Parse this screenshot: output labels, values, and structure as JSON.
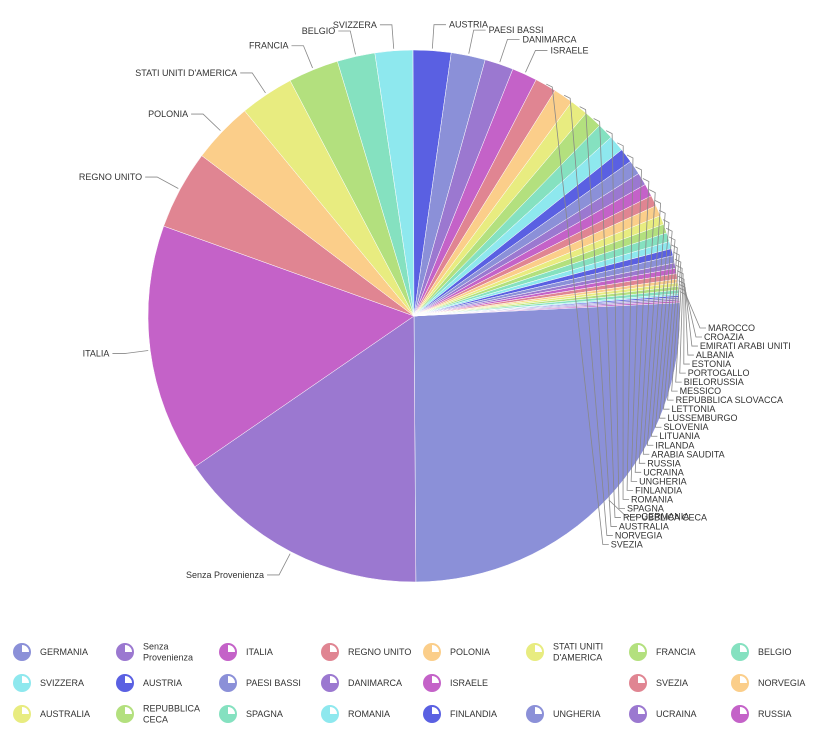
{
  "chart_data": {
    "type": "pie",
    "title": "",
    "legend_position": "bottom",
    "slices": [
      {
        "label": "GERMANIA",
        "value": 235,
        "color": "#8b90d8"
      },
      {
        "label": "Senza Provenienza",
        "value": 142,
        "color": "#9b78d0"
      },
      {
        "label": "ITALIA",
        "value": 138,
        "color": "#c462c8"
      },
      {
        "label": "REGNO UNITO",
        "value": 44,
        "color": "#e08592"
      },
      {
        "label": "POLONIA",
        "value": 34,
        "color": "#fbce8a"
      },
      {
        "label": "STATI UNITI D'AMERICA",
        "value": 30,
        "color": "#e8ec80"
      },
      {
        "label": "FRANCIA",
        "value": 28,
        "color": "#b3e07e"
      },
      {
        "label": "BELGIO",
        "value": 21,
        "color": "#85e1c0"
      },
      {
        "label": "SVIZZERA",
        "value": 21,
        "color": "#8ee8ee"
      },
      {
        "label": "AUSTRIA",
        "value": 21,
        "color": "#5a60e2"
      },
      {
        "label": "PAESI BASSI",
        "value": 19,
        "color": "#8b90d8"
      },
      {
        "label": "DANIMARCA",
        "value": 16,
        "color": "#9b78d0"
      },
      {
        "label": "ISRAELE",
        "value": 14,
        "color": "#c462c8"
      },
      {
        "label": "SVEZIA",
        "value": 12,
        "color": "#e08592"
      },
      {
        "label": "NORVEGIA",
        "value": 11,
        "color": "#fbce8a"
      },
      {
        "label": "AUSTRALIA",
        "value": 10,
        "color": "#e8ec80"
      },
      {
        "label": "REPUBBLICA CECA",
        "value": 10,
        "color": "#b3e07e"
      },
      {
        "label": "SPAGNA",
        "value": 9,
        "color": "#85e1c0"
      },
      {
        "label": "ROMANIA",
        "value": 9,
        "color": "#8ee8ee"
      },
      {
        "label": "FINLANDIA",
        "value": 8,
        "color": "#5a60e2"
      },
      {
        "label": "UNGHERIA",
        "value": 8,
        "color": "#8b90d8"
      },
      {
        "label": "UCRAINA",
        "value": 7,
        "color": "#9b78d0"
      },
      {
        "label": "RUSSIA",
        "value": 7,
        "color": "#c462c8"
      },
      {
        "label": "ARABIA SAUDITA",
        "value": 6,
        "color": "#e08592"
      },
      {
        "label": "IRLANDA",
        "value": 6,
        "color": "#fbce8a"
      },
      {
        "label": "LITUANIA",
        "value": 5,
        "color": "#e8ec80"
      },
      {
        "label": "SLOVENIA",
        "value": 5,
        "color": "#b3e07e"
      },
      {
        "label": "LUSSEMBURGO",
        "value": 5,
        "color": "#85e1c0"
      },
      {
        "label": "LETTONIA",
        "value": 4,
        "color": "#8ee8ee"
      },
      {
        "label": "REPUBBLICA SLOVACCA",
        "value": 4,
        "color": "#5a60e2"
      },
      {
        "label": "MESSICO",
        "value": 4,
        "color": "#8b90d8"
      },
      {
        "label": "BIELORUSSIA",
        "value": 3,
        "color": "#9b78d0"
      },
      {
        "label": "PORTOGALLO",
        "value": 3,
        "color": "#c462c8"
      },
      {
        "label": "ESTONIA",
        "value": 3,
        "color": "#e08592"
      },
      {
        "label": "ALBANIA",
        "value": 2,
        "color": "#fbce8a"
      },
      {
        "label": "EMIRATI ARABI UNITI",
        "value": 2,
        "color": "#e8ec80"
      },
      {
        "label": "CROAZIA",
        "value": 2,
        "color": "#b3e07e"
      },
      {
        "label": "MAROCCO",
        "value": 2,
        "color": "#85e1c0"
      },
      {
        "label": "",
        "value": 1,
        "color": "#8ee8ee"
      },
      {
        "label": "",
        "value": 1,
        "color": "#5a60e2"
      },
      {
        "label": "",
        "value": 1,
        "color": "#8b90d8"
      },
      {
        "label": "",
        "value": 1,
        "color": "#9b78d0"
      },
      {
        "label": "",
        "value": 1,
        "color": "#c462c8"
      }
    ],
    "legend": [
      [
        "GERMANIA",
        "Senza Provenienza",
        "ITALIA",
        "REGNO UNITO",
        "POLONIA",
        "STATI UNITI D'AMERICA",
        "FRANCIA",
        "BELGIO"
      ],
      [
        "SVIZZERA",
        "AUSTRIA",
        "PAESI BASSI",
        "DANIMARCA",
        "ISRAELE",
        "SVEZIA",
        "NORVEGIA"
      ],
      [
        "AUSTRALIA",
        "REPUBBLICA CECA",
        "SPAGNA",
        "ROMANIA",
        "FINLANDIA",
        "UNGHERIA",
        "UCRAINA",
        "RUSSIA"
      ]
    ]
  }
}
